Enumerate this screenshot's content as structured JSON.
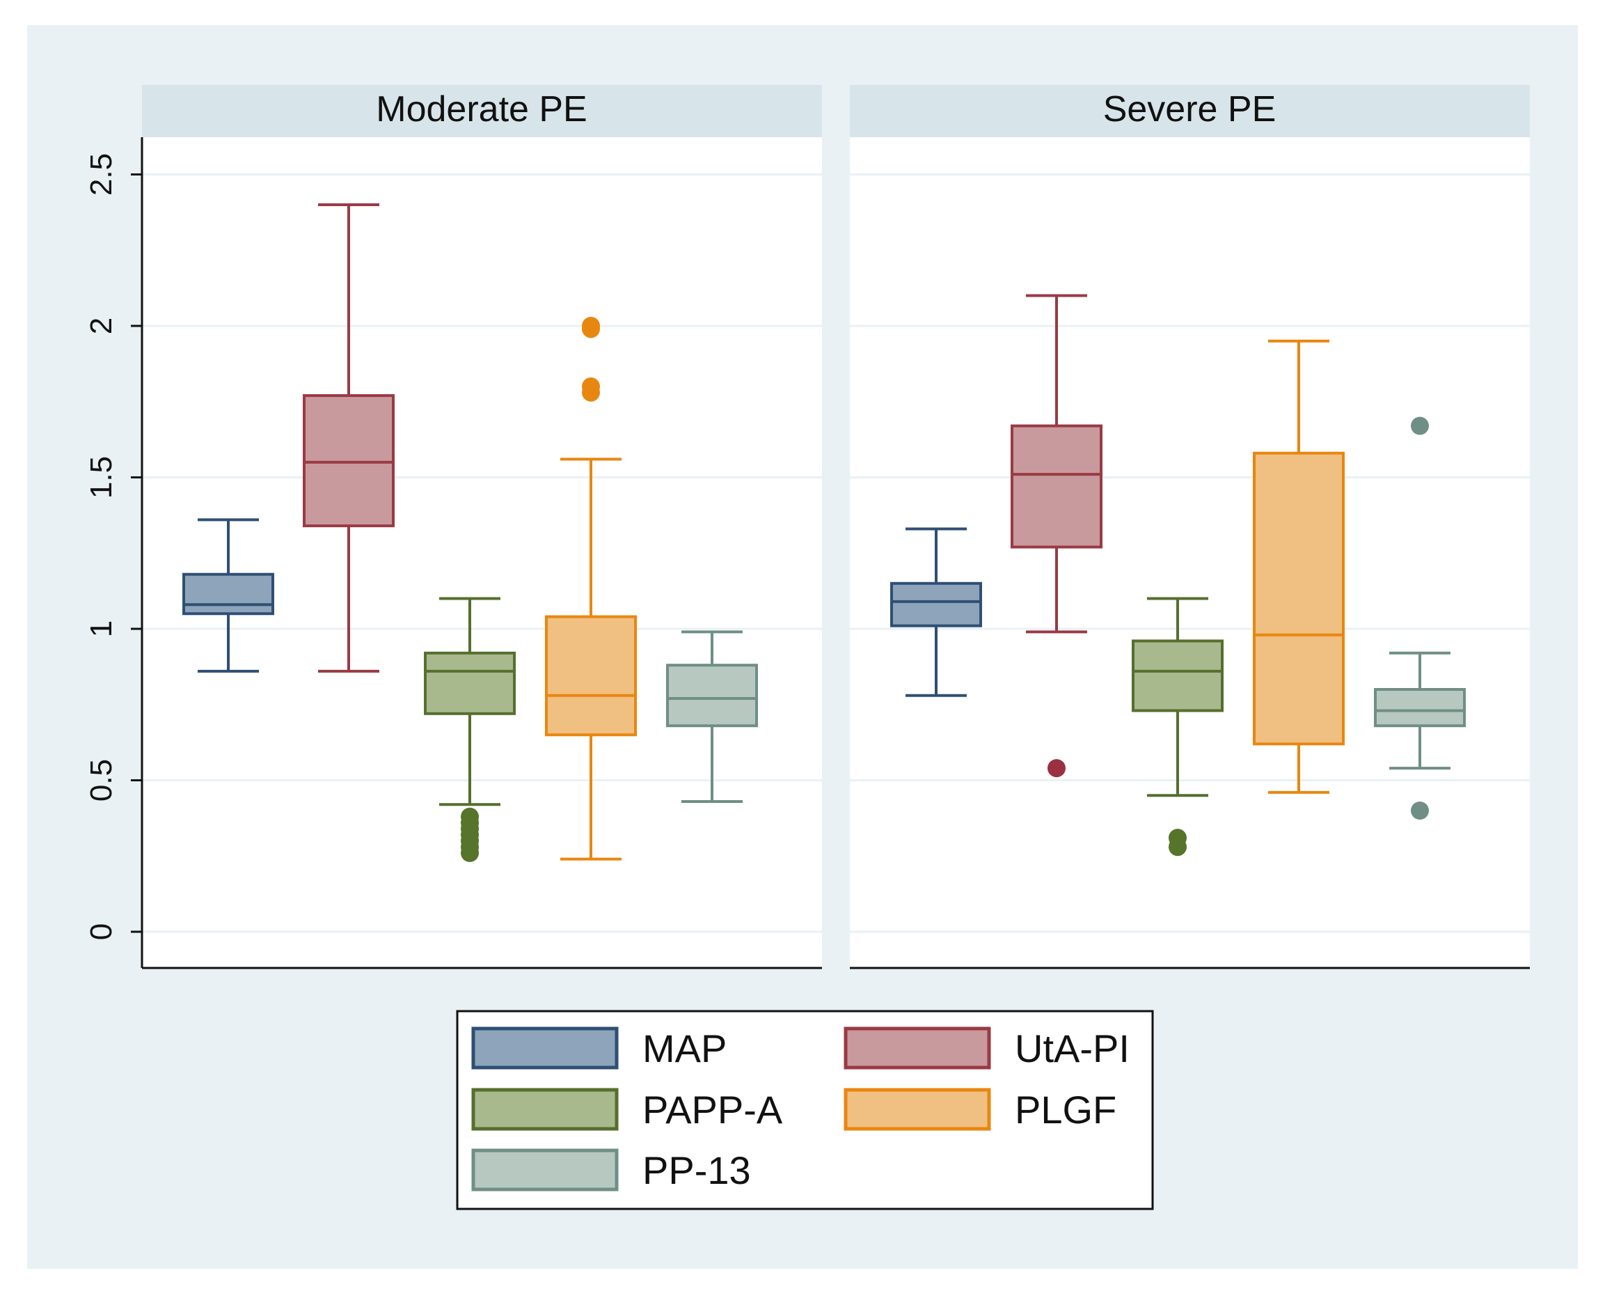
{
  "chart_data": {
    "type": "box",
    "ylim": [
      0,
      2.5
    ],
    "yticks": [
      0,
      0.5,
      1,
      1.5,
      2,
      2.5
    ],
    "ytick_labels": [
      "0",
      "0.5",
      "1",
      "1.5",
      "2",
      "2.5"
    ],
    "grid": true,
    "legend_position": "bottom",
    "series": [
      {
        "key": "map",
        "name": "MAP",
        "fill": "#8ea4bb",
        "stroke": "#2f4f74"
      },
      {
        "key": "utapi",
        "name": "UtA-PI",
        "fill": "#c99a9d",
        "stroke": "#9a3a44"
      },
      {
        "key": "pappa",
        "name": "PAPP-A",
        "fill": "#a9b98e",
        "stroke": "#566f2e"
      },
      {
        "key": "plgf",
        "name": "PLGF",
        "fill": "#f0bf82",
        "stroke": "#e8870f"
      },
      {
        "key": "pp13",
        "name": "PP-13",
        "fill": "#b7c8c1",
        "stroke": "#6f8f86"
      }
    ],
    "outlier_colors": {
      "map": "#2f4f74",
      "utapi": "#9a3040",
      "pappa": "#56742a",
      "plgf": "#e8870f",
      "pp13": "#6f8f86"
    },
    "panels": [
      {
        "title": "Moderate PE",
        "boxes": [
          {
            "series": "map",
            "whisker_low": 0.86,
            "q1": 1.05,
            "median": 1.08,
            "q3": 1.18,
            "whisker_high": 1.36,
            "outliers": []
          },
          {
            "series": "utapi",
            "whisker_low": 0.86,
            "q1": 1.34,
            "median": 1.55,
            "q3": 1.77,
            "whisker_high": 2.4,
            "outliers": []
          },
          {
            "series": "pappa",
            "whisker_low": 0.42,
            "q1": 0.72,
            "median": 0.86,
            "q3": 0.92,
            "whisker_high": 1.1,
            "outliers": [
              0.38,
              0.36,
              0.34,
              0.32,
              0.3,
              0.28,
              0.26
            ]
          },
          {
            "series": "plgf",
            "whisker_low": 0.24,
            "q1": 0.65,
            "median": 0.78,
            "q3": 1.04,
            "whisker_high": 1.56,
            "outliers": [
              1.78,
              1.8,
              1.99,
              2.0
            ]
          },
          {
            "series": "pp13",
            "whisker_low": 0.43,
            "q1": 0.68,
            "median": 0.77,
            "q3": 0.88,
            "whisker_high": 0.99,
            "outliers": []
          }
        ]
      },
      {
        "title": "Severe PE",
        "boxes": [
          {
            "series": "map",
            "whisker_low": 0.78,
            "q1": 1.01,
            "median": 1.09,
            "q3": 1.15,
            "whisker_high": 1.33,
            "outliers": []
          },
          {
            "series": "utapi",
            "whisker_low": 0.99,
            "q1": 1.27,
            "median": 1.51,
            "q3": 1.67,
            "whisker_high": 2.1,
            "outliers": [
              0.54
            ]
          },
          {
            "series": "pappa",
            "whisker_low": 0.45,
            "q1": 0.73,
            "median": 0.86,
            "q3": 0.96,
            "whisker_high": 1.1,
            "outliers": [
              0.31,
              0.28
            ]
          },
          {
            "series": "plgf",
            "whisker_low": 0.46,
            "q1": 0.62,
            "median": 0.98,
            "q3": 1.58,
            "whisker_high": 1.95,
            "outliers": []
          },
          {
            "series": "pp13",
            "whisker_low": 0.54,
            "q1": 0.68,
            "median": 0.73,
            "q3": 0.8,
            "whisker_high": 0.92,
            "outliers": [
              0.4,
              1.67
            ]
          }
        ]
      }
    ]
  }
}
